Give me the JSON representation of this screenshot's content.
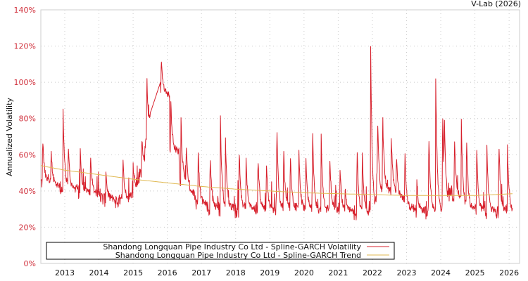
{
  "header": {
    "credit": "V-Lab (2026)"
  },
  "chart_data": {
    "type": "line",
    "title": "",
    "xlabel": "",
    "ylabel": "Annualized Volatility",
    "ylim": [
      0,
      140
    ],
    "yticks": [
      0,
      20,
      40,
      60,
      80,
      100,
      120,
      140
    ],
    "ytick_labels": [
      "0%",
      "20%",
      "40%",
      "60%",
      "80%",
      "100%",
      "120%",
      "140%"
    ],
    "xlim": [
      2012.3,
      2026.1
    ],
    "xticks": [
      2013,
      2014,
      2015,
      2016,
      2017,
      2018,
      2019,
      2020,
      2021,
      2022,
      2023,
      2024,
      2025,
      2026
    ],
    "xtick_labels": [
      "2013",
      "2014",
      "2015",
      "2016",
      "2017",
      "2018",
      "2019",
      "2020",
      "2021",
      "2022",
      "2023",
      "2024",
      "2025",
      "2026"
    ],
    "grid": true,
    "legend_position": "lower-left inside",
    "series": [
      {
        "name": "Shandong Longquan Pipe Industry Co Ltd - Spline-GARCH Volatility",
        "color": "#d7202c",
        "baseline": [
          [
            2012.3,
            45
          ],
          [
            2012.8,
            42
          ],
          [
            2013.3,
            40
          ],
          [
            2013.8,
            38
          ],
          [
            2014.2,
            35
          ],
          [
            2014.6,
            34
          ],
          [
            2015.0,
            38
          ],
          [
            2015.3,
            55
          ],
          [
            2015.5,
            82
          ],
          [
            2015.8,
            100
          ],
          [
            2015.95,
            50
          ],
          [
            2016.1,
            62
          ],
          [
            2016.5,
            40
          ],
          [
            2017.0,
            31
          ],
          [
            2017.5,
            30
          ],
          [
            2018.0,
            29
          ],
          [
            2018.5,
            30
          ],
          [
            2019.0,
            29
          ],
          [
            2019.5,
            30
          ],
          [
            2020.0,
            29
          ],
          [
            2020.5,
            28
          ],
          [
            2021.0,
            29
          ],
          [
            2021.5,
            28
          ],
          [
            2022.0,
            27
          ],
          [
            2022.2,
            40
          ],
          [
            2022.6,
            38
          ],
          [
            2022.9,
            30
          ],
          [
            2023.5,
            28
          ],
          [
            2024.0,
            28
          ],
          [
            2024.3,
            40
          ],
          [
            2024.6,
            30
          ],
          [
            2025.0,
            29
          ],
          [
            2025.5,
            28
          ],
          [
            2026.1,
            28
          ]
        ],
        "spikes": [
          [
            2012.35,
            72
          ],
          [
            2012.6,
            63
          ],
          [
            2012.95,
            85
          ],
          [
            2013.1,
            66
          ],
          [
            2013.45,
            64
          ],
          [
            2013.75,
            62
          ],
          [
            2014.2,
            52
          ],
          [
            2014.7,
            58
          ],
          [
            2015.0,
            55
          ],
          [
            2015.25,
            72
          ],
          [
            2015.4,
            104
          ],
          [
            2015.82,
            117
          ],
          [
            2016.0,
            90
          ],
          [
            2016.1,
            91
          ],
          [
            2016.4,
            80
          ],
          [
            2016.55,
            67
          ],
          [
            2016.9,
            64
          ],
          [
            2017.25,
            63
          ],
          [
            2017.55,
            85
          ],
          [
            2017.7,
            72
          ],
          [
            2018.1,
            66
          ],
          [
            2018.3,
            60
          ],
          [
            2018.65,
            62
          ],
          [
            2018.9,
            58
          ],
          [
            2019.2,
            82
          ],
          [
            2019.4,
            68
          ],
          [
            2019.6,
            60
          ],
          [
            2019.85,
            64
          ],
          [
            2020.05,
            63
          ],
          [
            2020.25,
            75
          ],
          [
            2020.5,
            72
          ],
          [
            2020.75,
            62
          ],
          [
            2021.05,
            55
          ],
          [
            2021.2,
            42
          ],
          [
            2021.55,
            66
          ],
          [
            2021.7,
            65
          ],
          [
            2021.95,
            120
          ],
          [
            2022.15,
            83
          ],
          [
            2022.3,
            84
          ],
          [
            2022.55,
            72
          ],
          [
            2022.7,
            63
          ],
          [
            2022.95,
            63
          ],
          [
            2023.3,
            47
          ],
          [
            2023.65,
            74
          ],
          [
            2023.85,
            108
          ],
          [
            2024.05,
            91
          ],
          [
            2024.1,
            88
          ],
          [
            2024.4,
            70
          ],
          [
            2024.6,
            82
          ],
          [
            2024.75,
            76
          ],
          [
            2025.05,
            66
          ],
          [
            2025.35,
            66
          ],
          [
            2025.7,
            70
          ],
          [
            2025.95,
            66
          ],
          [
            2026.0,
            42
          ]
        ]
      },
      {
        "name": "Shandong Longquan Pipe Industry Co Ltd - Spline-GARCH Trend",
        "color": "#e0b850",
        "values": [
          [
            2012.3,
            54
          ],
          [
            2013.0,
            51.5
          ],
          [
            2014.0,
            49
          ],
          [
            2015.0,
            46.5
          ],
          [
            2016.0,
            44.5
          ],
          [
            2017.0,
            42.5
          ],
          [
            2018.0,
            41
          ],
          [
            2019.0,
            40
          ],
          [
            2020.0,
            39
          ],
          [
            2021.0,
            38.5
          ],
          [
            2022.0,
            38
          ],
          [
            2023.0,
            37.5
          ],
          [
            2024.0,
            37.5
          ],
          [
            2025.0,
            37.5
          ],
          [
            2026.1,
            38.5
          ]
        ]
      }
    ]
  },
  "legend": {
    "items": [
      {
        "label": "Shandong Longquan Pipe Industry Co Ltd - Spline-GARCH Volatility",
        "color": "#d7202c"
      },
      {
        "label": "Shandong Longquan Pipe Industry Co Ltd - Spline-GARCH Trend",
        "color": "#e0b850"
      }
    ]
  },
  "colors": {
    "tick_label_y": "#d0303c",
    "grid": "#c8c8c8",
    "axis_frame": "#cccccc"
  }
}
